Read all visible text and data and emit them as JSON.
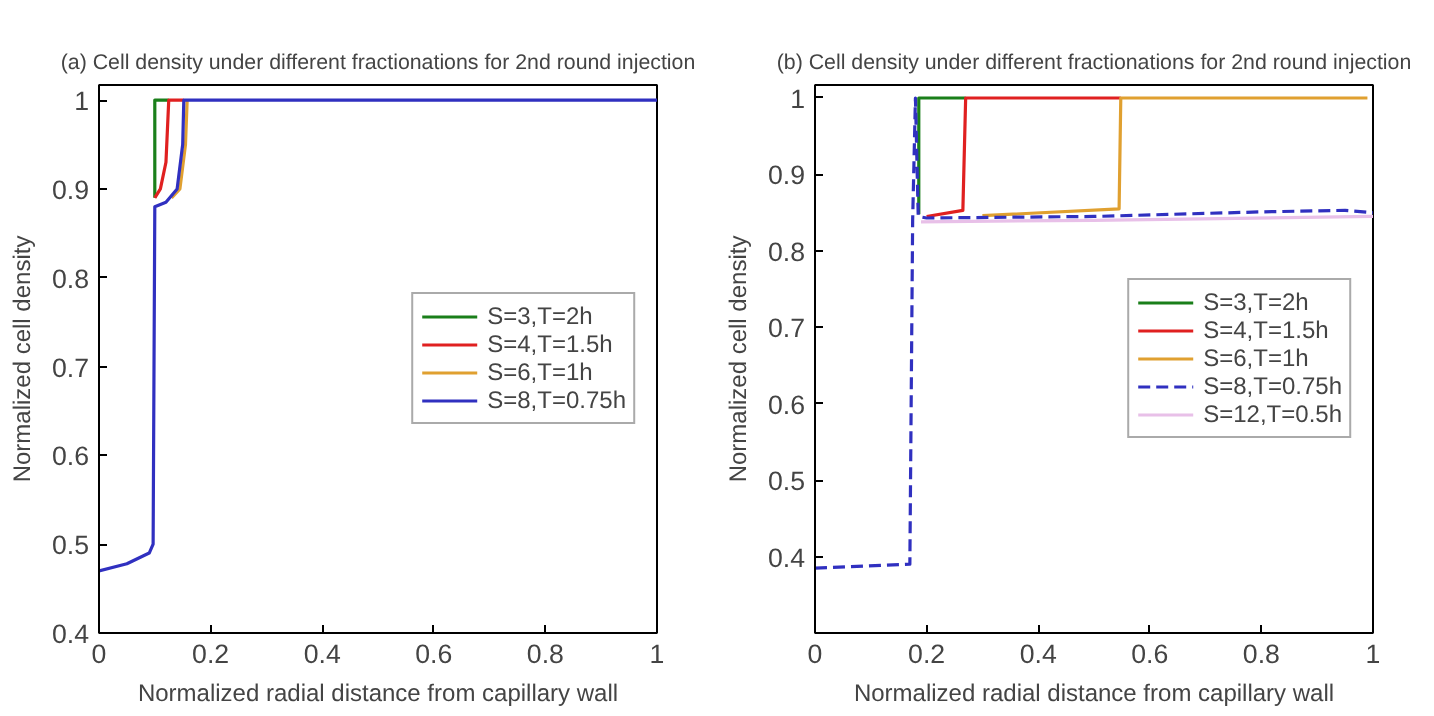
{
  "chart_data": [
    {
      "type": "line",
      "title": "(a) Cell density under different fractionations for 2nd round injection",
      "xlabel": "Normalized radial distance from capillary wall",
      "ylabel": "Normalized cell density",
      "xlim": [
        0,
        1
      ],
      "ylim": [
        0.4,
        1.017
      ],
      "xticks": [
        0,
        0.2,
        0.4,
        0.6,
        0.8,
        1
      ],
      "yticks": [
        0.4,
        0.5,
        0.6,
        0.7,
        0.8,
        0.9,
        1
      ],
      "grid": false,
      "legend": "right",
      "line_style": "solid",
      "series": [
        {
          "name": "S=3,T=2h",
          "color": "#1a7f1a",
          "x": [
            0.1,
            0.1,
            0.125
          ],
          "values": [
            0.89,
            1.0,
            1.0
          ]
        },
        {
          "name": "S=4,T=1.5h",
          "color": "#e02020",
          "x": [
            0.1,
            0.11,
            0.12,
            0.125,
            0.152
          ],
          "values": [
            0.89,
            0.9,
            0.93,
            1.0,
            1.0
          ]
        },
        {
          "name": "S=6,T=1h",
          "color": "#e0a030",
          "x": [
            0.13,
            0.145,
            0.155,
            0.158
          ],
          "values": [
            0.89,
            0.9,
            0.95,
            1.0
          ]
        },
        {
          "name": "S=8,T=0.75h",
          "color": "#3030c0",
          "x": [
            0,
            0.05,
            0.09,
            0.097,
            0.1,
            0.12,
            0.14,
            0.15,
            0.152,
            1
          ],
          "values": [
            0.47,
            0.478,
            0.49,
            0.5,
            0.88,
            0.885,
            0.9,
            0.95,
            1.0,
            1.0
          ]
        }
      ]
    },
    {
      "type": "line",
      "title": "(b) Cell density under different fractionations for 2nd round injection",
      "xlabel": "Normalized radial distance from capillary wall",
      "ylabel": "Normalized cell density",
      "xlim": [
        0,
        1
      ],
      "ylim": [
        0.3,
        1.017
      ],
      "xticks": [
        0,
        0.2,
        0.4,
        0.6,
        0.8,
        1
      ],
      "yticks": [
        0.4,
        0.5,
        0.6,
        0.7,
        0.8,
        0.9,
        1
      ],
      "grid": false,
      "legend": "right",
      "line_style": "solid",
      "series": [
        {
          "name": "S=3,T=2h",
          "color": "#1a7f1a",
          "x": [
            0.186,
            0.186,
            0.27
          ],
          "values": [
            0.848,
            1.0,
            1.0
          ]
        },
        {
          "name": "S=4,T=1.5h",
          "color": "#e02020",
          "x": [
            0.2,
            0.265,
            0.27,
            0.548
          ],
          "values": [
            0.845,
            0.853,
            1.0,
            1.0
          ]
        },
        {
          "name": "S=6,T=1h",
          "color": "#e0a030",
          "x": [
            0.3,
            0.545,
            0.548,
            0.99
          ],
          "values": [
            0.846,
            0.855,
            1.0,
            1.0
          ]
        },
        {
          "name": "S=8,T=0.75h",
          "color": "#3030c0",
          "line_style": "dashed",
          "x": [
            0,
            0.17,
            0.175,
            0.18,
            0.185,
            0.2,
            0.5,
            0.8,
            0.95,
            1
          ],
          "values": [
            0.385,
            0.39,
            0.84,
            1.0,
            0.845,
            0.843,
            0.845,
            0.851,
            0.853,
            0.85
          ]
        },
        {
          "name": "S=12,T=0.5h",
          "color": "#e8c0e8",
          "x": [
            0.19,
            0.5,
            1
          ],
          "values": [
            0.838,
            0.84,
            0.845
          ]
        }
      ]
    }
  ]
}
